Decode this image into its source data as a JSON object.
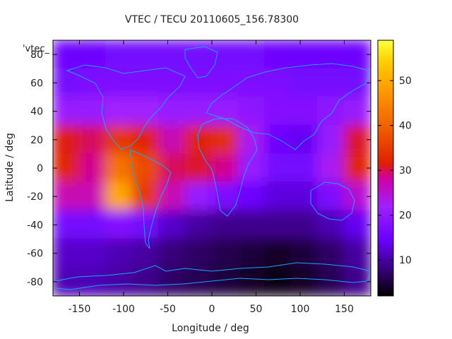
{
  "chart_data": {
    "type": "heatmap",
    "title": "VTEC / TECU 20110605_156.78300",
    "xlabel": "Longitude / deg",
    "ylabel": "Latitude / deg",
    "legend_label": "'vtec_",
    "xlim": [
      -180,
      180
    ],
    "ylim": [
      -90,
      90
    ],
    "x_ticks": [
      -150,
      -100,
      -50,
      0,
      50,
      100,
      150
    ],
    "y_ticks": [
      -80,
      -60,
      -40,
      -20,
      0,
      20,
      40,
      60,
      80
    ],
    "colorbar": {
      "range": [
        2,
        59
      ],
      "ticks": [
        10,
        20,
        30,
        40,
        50
      ],
      "palette": [
        "#000000",
        "#3a0080",
        "#6a00ff",
        "#a020ff",
        "#d000a0",
        "#e02000",
        "#f06000",
        "#ff9800",
        "#ffd000",
        "#ffff40"
      ]
    },
    "grid": false,
    "columns": [
      -165,
      -135,
      -105,
      -75,
      -45,
      -15,
      15,
      45,
      75,
      105,
      135,
      165
    ],
    "rows": [
      {
        "lat": 80,
        "values": [
          15,
          15,
          16,
          16,
          16,
          16,
          16,
          16,
          15,
          15,
          15,
          15
        ]
      },
      {
        "lat": 60,
        "values": [
          16,
          17,
          17,
          17,
          17,
          17,
          17,
          17,
          17,
          16,
          16,
          16
        ]
      },
      {
        "lat": 40,
        "values": [
          20,
          20,
          21,
          21,
          20,
          20,
          20,
          19,
          18,
          18,
          19,
          20
        ]
      },
      {
        "lat": 20,
        "values": [
          33,
          30,
          36,
          34,
          26,
          34,
          35,
          22,
          15,
          14,
          20,
          32
        ]
      },
      {
        "lat": 0,
        "values": [
          34,
          28,
          42,
          38,
          30,
          32,
          28,
          20,
          16,
          16,
          22,
          34
        ]
      },
      {
        "lat": -20,
        "values": [
          26,
          26,
          48,
          36,
          26,
          20,
          17,
          15,
          13,
          13,
          17,
          24
        ]
      },
      {
        "lat": -40,
        "values": [
          16,
          16,
          18,
          16,
          12,
          10,
          9,
          9,
          9,
          9,
          11,
          14
        ]
      },
      {
        "lat": -60,
        "values": [
          12,
          12,
          11,
          10,
          8,
          7,
          6,
          5,
          4,
          5,
          7,
          10
        ]
      },
      {
        "lat": -80,
        "values": [
          11,
          11,
          10,
          9,
          7,
          6,
          5,
          4,
          3,
          4,
          6,
          9
        ]
      }
    ],
    "overlay": "coastlines"
  }
}
